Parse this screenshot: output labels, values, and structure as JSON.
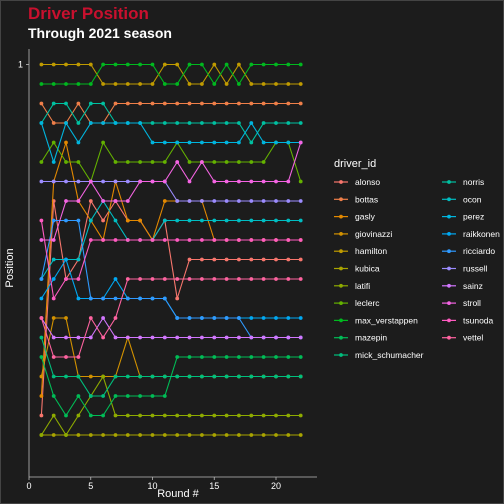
{
  "chart_data": {
    "type": "line",
    "title": "Driver Position",
    "subtitle": "Through 2021 season",
    "xlabel": "Round #",
    "ylabel": "Position",
    "x_ticks": [
      0,
      5,
      10,
      15,
      20
    ],
    "y_ticks": [
      1
    ],
    "xlim": [
      0,
      23
    ],
    "ylim": [
      20,
      1
    ],
    "grid": false,
    "legend_title": "driver_id",
    "legend_position": "right",
    "series": [
      {
        "name": "alonso",
        "color": "#F8766D",
        "values": [
          19,
          8,
          12,
          11,
          8,
          9,
          8,
          9,
          9,
          10,
          9,
          13,
          11,
          11,
          11,
          11,
          11,
          11,
          11,
          11,
          11,
          11
        ]
      },
      {
        "name": "bottas",
        "color": "#EF7F49",
        "values": [
          3,
          4,
          4,
          3,
          4,
          4,
          3,
          3,
          3,
          3,
          3,
          3,
          3,
          3,
          3,
          3,
          3,
          3,
          3,
          3,
          3,
          3
        ]
      },
      {
        "name": "gasly",
        "color": "#E38900",
        "values": [
          18,
          7,
          5,
          8,
          9,
          10,
          7,
          9,
          9,
          10,
          8,
          8,
          8,
          8,
          10,
          10,
          10,
          10,
          10,
          10,
          10,
          10
        ]
      },
      {
        "name": "giovinazzi",
        "color": "#D39200",
        "values": [
          17,
          14,
          14,
          17,
          17,
          17,
          17,
          15,
          17,
          17,
          17,
          17,
          17,
          17,
          17,
          17,
          17,
          17,
          17,
          17,
          17,
          17
        ]
      },
      {
        "name": "hamilton",
        "color": "#C09B00",
        "values": [
          1,
          1,
          1,
          1,
          1,
          2,
          2,
          2,
          2,
          2,
          1,
          1,
          2,
          2,
          1,
          2,
          1,
          2,
          2,
          2,
          2,
          2
        ]
      },
      {
        "name": "kubica",
        "color": "#A9A400",
        "values": [
          20,
          20,
          20,
          20,
          20,
          20,
          20,
          20,
          20,
          20,
          20,
          20,
          20,
          20,
          20,
          20,
          20,
          20,
          20,
          20,
          20,
          20
        ]
      },
      {
        "name": "latifi",
        "color": "#8EAB00",
        "values": [
          20,
          19,
          20,
          19,
          18,
          17,
          19,
          19,
          19,
          19,
          19,
          19,
          19,
          19,
          19,
          19,
          19,
          19,
          19,
          19,
          19,
          19
        ]
      },
      {
        "name": "leclerc",
        "color": "#64B200",
        "values": [
          6,
          5,
          6,
          6,
          7,
          5,
          6,
          6,
          6,
          6,
          6,
          5,
          6,
          6,
          6,
          6,
          6,
          6,
          6,
          5,
          5,
          7
        ]
      },
      {
        "name": "max_verstappen",
        "color": "#00B81F",
        "values": [
          2,
          2,
          2,
          2,
          2,
          1,
          1,
          1,
          1,
          1,
          2,
          2,
          1,
          1,
          2,
          1,
          2,
          1,
          1,
          1,
          1,
          1
        ]
      },
      {
        "name": "mazepin",
        "color": "#00BC56",
        "values": [
          16,
          18,
          19,
          18,
          19,
          19,
          18,
          18,
          18,
          18,
          18,
          16,
          16,
          16,
          16,
          16,
          16,
          16,
          16,
          16,
          16,
          16
        ]
      },
      {
        "name": "mick_schumacher",
        "color": "#00BF7D",
        "values": [
          15,
          17,
          17,
          17,
          18,
          18,
          17,
          17,
          17,
          17,
          17,
          17,
          17,
          17,
          17,
          17,
          17,
          17,
          17,
          17,
          17,
          17
        ]
      },
      {
        "name": "norris",
        "color": "#00C0A1",
        "values": [
          4,
          3,
          3,
          4,
          3,
          3,
          4,
          4,
          4,
          4,
          4,
          4,
          4,
          4,
          4,
          4,
          4,
          5,
          4,
          4,
          4,
          4
        ]
      },
      {
        "name": "ocon",
        "color": "#00BDC2",
        "values": [
          12,
          11,
          11,
          11,
          9,
          8,
          9,
          10,
          10,
          10,
          9,
          9,
          9,
          9,
          9,
          9,
          9,
          9,
          9,
          9,
          9,
          9
        ]
      },
      {
        "name": "perez",
        "color": "#00B5DE",
        "values": [
          4,
          6,
          4,
          5,
          4,
          4,
          4,
          4,
          4,
          5,
          5,
          5,
          5,
          5,
          5,
          5,
          5,
          4,
          5,
          5,
          5,
          5
        ]
      },
      {
        "name": "raikkonen",
        "color": "#00A9F3",
        "values": [
          13,
          12,
          11,
          13,
          13,
          13,
          12,
          13,
          13,
          13,
          13,
          14,
          14,
          14,
          14,
          14,
          14,
          14,
          14,
          14,
          14,
          14
        ]
      },
      {
        "name": "ricciardo",
        "color": "#2F9AFF",
        "values": [
          12,
          9,
          9,
          9,
          13,
          13,
          13,
          13,
          13,
          13,
          13,
          14,
          14,
          14,
          14,
          14,
          14,
          15,
          15,
          15,
          15,
          15
        ]
      },
      {
        "name": "russell",
        "color": "#9C8CFF",
        "values": [
          7,
          7,
          7,
          7,
          7,
          7,
          7,
          7,
          7,
          7,
          7,
          8,
          8,
          8,
          8,
          8,
          8,
          8,
          8,
          8,
          8,
          8
        ]
      },
      {
        "name": "sainz",
        "color": "#D277FF",
        "values": [
          14,
          15,
          15,
          15,
          15,
          14,
          15,
          15,
          15,
          15,
          15,
          15,
          15,
          15,
          15,
          15,
          15,
          15,
          15,
          15,
          15,
          15
        ]
      },
      {
        "name": "stroll",
        "color": "#F564E3",
        "values": [
          10,
          10,
          8,
          8,
          7,
          8,
          8,
          8,
          7,
          7,
          7,
          6,
          7,
          6,
          7,
          7,
          7,
          7,
          7,
          7,
          7,
          5
        ]
      },
      {
        "name": "tsunoda",
        "color": "#FF5BC1",
        "values": [
          9,
          13,
          12,
          12,
          10,
          10,
          10,
          10,
          10,
          10,
          10,
          10,
          10,
          10,
          10,
          10,
          10,
          10,
          10,
          10,
          10,
          10
        ]
      },
      {
        "name": "vettel",
        "color": "#FF63A0",
        "values": [
          14,
          16,
          16,
          16,
          14,
          15,
          14,
          12,
          12,
          12,
          12,
          12,
          12,
          12,
          12,
          12,
          12,
          12,
          12,
          12,
          12,
          12
        ]
      }
    ]
  }
}
